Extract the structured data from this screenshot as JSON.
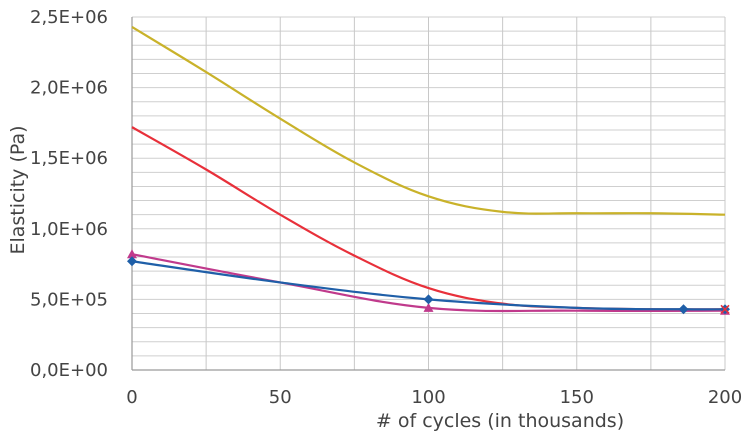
{
  "chart_data": {
    "type": "line",
    "title": "",
    "xlabel": "# of cycles (in thousands)",
    "ylabel": "Elasticity (Pa)",
    "xlim": [
      0,
      200
    ],
    "ylim": [
      0,
      2500000
    ],
    "x_ticks": [
      0,
      50,
      100,
      150,
      200
    ],
    "x_tick_labels": [
      "0",
      "50",
      "100",
      "150",
      "200"
    ],
    "y_ticks": [
      0,
      500000,
      1000000,
      1500000,
      2000000,
      2500000
    ],
    "y_tick_labels": [
      "0,0E+00",
      "5,0E+05",
      "1,0E+06",
      "1,5E+06",
      "2,0E+06",
      "2,5E+06"
    ],
    "grid": true,
    "legend": "none",
    "series": [
      {
        "color": "#c9b22a",
        "marker": "none",
        "x": [
          0,
          25,
          50,
          75,
          100,
          125,
          150,
          175,
          200
        ],
        "y": [
          2430000,
          2110000,
          1780000,
          1470000,
          1230000,
          1120000,
          1110000,
          1110000,
          1100000
        ]
      },
      {
        "color": "#e8303a",
        "marker": "x",
        "x": [
          0,
          25,
          50,
          75,
          100,
          125,
          150,
          175,
          200
        ],
        "y": [
          1720000,
          1420000,
          1100000,
          810000,
          580000,
          470000,
          440000,
          430000,
          430000
        ]
      },
      {
        "color": "#c03a8c",
        "marker": "triangle",
        "x": [
          0,
          50,
          100,
          150,
          200
        ],
        "y": [
          820000,
          620000,
          440000,
          420000,
          420000
        ]
      },
      {
        "color": "#1f5fa8",
        "marker": "diamond",
        "x": [
          0,
          50,
          100,
          150,
          186,
          200
        ],
        "y": [
          770000,
          620000,
          500000,
          440000,
          430000,
          430000
        ]
      }
    ],
    "markers": [
      {
        "series": 2,
        "x": 0,
        "y": 820000
      },
      {
        "series": 2,
        "x": 100,
        "y": 440000
      },
      {
        "series": 2,
        "x": 200,
        "y": 420000
      },
      {
        "series": 3,
        "x": 0,
        "y": 770000
      },
      {
        "series": 3,
        "x": 100,
        "y": 500000
      },
      {
        "series": 3,
        "x": 186,
        "y": 430000
      },
      {
        "series": 3,
        "x": 200,
        "y": 430000
      },
      {
        "series": 1,
        "x": 200,
        "y": 430000
      }
    ]
  }
}
